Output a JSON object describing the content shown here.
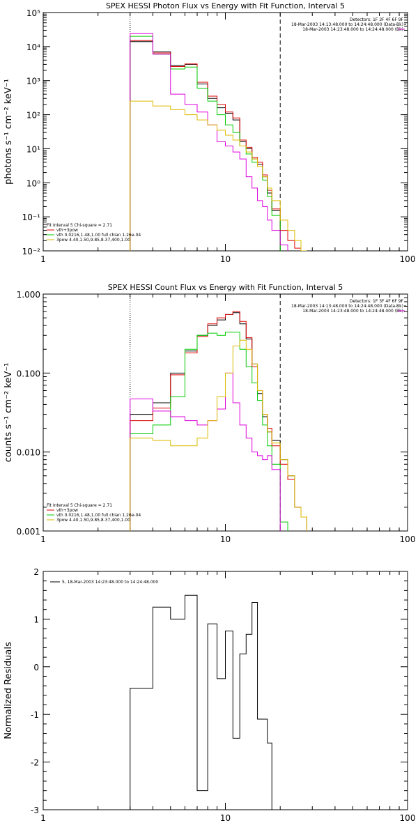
{
  "chart_data": [
    {
      "type": "line",
      "title": "SPEX HESSI Photon Flux vs Energy with Fit Function, Interval 5",
      "ylabel": "photons s⁻¹ cm⁻² keV⁻¹",
      "xlabel": "",
      "x_scale": "log",
      "y_scale": "log",
      "xlim": [
        1,
        100
      ],
      "ylim": [
        0.01,
        100000
      ],
      "x_ticks": [
        "1",
        "10",
        "100"
      ],
      "y_ticks": [
        "10⁻²",
        "10⁻¹",
        "10⁰",
        "10¹",
        "10²",
        "10³",
        "10⁴",
        "10⁵"
      ],
      "vlines": [
        3,
        20
      ],
      "legend_top": [
        "Detectors: 1F 3F 4F 6F 9F",
        "18-Mar-2003 14:13:48.000 to 14:24:48.000 (Data-Bk)",
        "18-Mar-2003 14:23:48.000 to 14:24:48.000 (Bk)"
      ],
      "legend_bottom_title": "Fit Interval 5   Chi-square = 2.71",
      "legend_bottom": [
        "vth+3pow",
        "vth 0.0216,1.48,1.00  full chian 1.26e-04",
        "3pow 4.40,1.50,9.85,8.37,400,1.00"
      ],
      "bin_edges": [
        3,
        4,
        5,
        6,
        7,
        8,
        9,
        10,
        11,
        12,
        13,
        14,
        15,
        16,
        17,
        18,
        20,
        22,
        24,
        26,
        28
      ],
      "series": [
        {
          "name": "18-Mar-2003 14:13:48.000 to 14:24:48.000 (Data-Bk)",
          "color": "#000000",
          "values": [
            14000,
            7000,
            2800,
            3000,
            800,
            300,
            160,
            110,
            70,
            16,
            10,
            5,
            3.5,
            1.5,
            0.5,
            0.15
          ]
        },
        {
          "name": "vth+3pow",
          "color": "#dd0000",
          "values": [
            15000,
            6500,
            2600,
            3100,
            900,
            350,
            200,
            120,
            80,
            18,
            11,
            5.5,
            4.0,
            1.7,
            0.6,
            0.17,
            0.04,
            0.02,
            0.012,
            0.009
          ]
        },
        {
          "name": "vth 0.0216,1.48,1.00  full chian 1.26e-04",
          "color": "#00cc00",
          "values": [
            20000,
            6000,
            2200,
            2500,
            600,
            250,
            100,
            50,
            30,
            12,
            7,
            4,
            3,
            1.2,
            0.4,
            0.11,
            0.004
          ]
        },
        {
          "name": "18-Mar-2003 14:23:48.000 to 14:24:48.000 (Bk)",
          "color": "#dd00dd",
          "values": [
            24000,
            6000,
            400,
            200,
            120,
            50,
            16,
            12,
            8,
            5,
            1.5,
            0.7,
            0.3,
            0.2,
            0.08,
            0.04,
            0.015
          ]
        },
        {
          "name": "3pow 4.40,1.50,9.85,8.37,400,1.00",
          "color": "#ddbb00",
          "values": [
            250,
            180,
            140,
            100,
            70,
            50,
            35,
            25,
            18,
            12,
            8,
            5,
            3,
            1.5,
            0.7,
            0.3,
            0.08,
            0.04,
            0.02,
            0.01
          ]
        }
      ]
    },
    {
      "type": "line",
      "title": "SPEX HESSI Count Flux vs Energy with Fit Function, Interval 5",
      "ylabel": "counts s⁻¹ cm⁻² keV⁻¹",
      "xlabel": "",
      "x_scale": "log",
      "y_scale": "log",
      "xlim": [
        1,
        100
      ],
      "ylim": [
        0.001,
        1.0
      ],
      "x_ticks": [
        "1",
        "10",
        "100"
      ],
      "y_ticks": [
        "0.001",
        "0.010",
        "0.100",
        "1.000"
      ],
      "vlines": [
        3,
        20
      ],
      "legend_top": [
        "Detectors: 1F 3F 4F 6F 9F",
        "18-Mar-2003 14:13:48.000 to 14:24:48.000 (Data-Bk)",
        "18-Mar-2003 14:23:48.000 to 14:24:48.000 (Bk)"
      ],
      "legend_bottom_title": "Fit Interval 5   Chi-square = 2.71",
      "legend_bottom": [
        "vth+3pow",
        "vth 0.0216,1.48,1.00  full chian 1.26e-04",
        "3pow 4.40,1.50,9.85,8.37,400,1.00"
      ],
      "bin_edges": [
        3,
        4,
        5,
        6,
        7,
        8,
        9,
        10,
        11,
        12,
        13,
        14,
        15,
        16,
        17,
        18,
        20,
        22,
        24,
        26,
        28
      ],
      "series": [
        {
          "name": "18-Mar-2003 14:13:48.000 to 14:24:48.000 (Data-Bk)",
          "color": "#000000",
          "values": [
            0.03,
            0.042,
            0.1,
            0.19,
            0.3,
            0.4,
            0.47,
            0.55,
            0.58,
            0.42,
            0.27,
            0.13,
            0.055,
            0.028,
            0.018,
            0.014,
            0.008,
            0.005,
            0.002,
            0.0015
          ]
        },
        {
          "name": "vth+3pow",
          "color": "#dd0000",
          "values": [
            0.025,
            0.036,
            0.095,
            0.18,
            0.29,
            0.42,
            0.5,
            0.55,
            0.6,
            0.45,
            0.28,
            0.12,
            0.06,
            0.03,
            0.02,
            0.012,
            0.007,
            0.0045,
            0.002,
            0.0015
          ]
        },
        {
          "name": "vth 0.0216,1.48,1.00  full chian 1.26e-04",
          "color": "#00cc00",
          "values": [
            0.017,
            0.022,
            0.05,
            0.2,
            0.3,
            0.32,
            0.3,
            0.33,
            0.33,
            0.2,
            0.12,
            0.075,
            0.045,
            0.022,
            0.012,
            0.007,
            0.0013
          ]
        },
        {
          "name": "18-Mar-2003 14:23:48.000 to 14:24:48.000 (Bk)",
          "color": "#dd00dd",
          "values": [
            0.047,
            0.033,
            0.028,
            0.025,
            0.022,
            0.025,
            0.035,
            0.1,
            0.042,
            0.022,
            0.015,
            0.01,
            0.009,
            0.008,
            0.009,
            0.006
          ]
        },
        {
          "name": "3pow 4.40,1.50,9.85,8.37,400,1.00",
          "color": "#ddbb00",
          "values": [
            0.015,
            0.014,
            0.012,
            0.012,
            0.015,
            0.025,
            0.05,
            0.1,
            0.22,
            0.26,
            0.2,
            0.13,
            0.06,
            0.03,
            0.018,
            0.013,
            0.008,
            0.005,
            0.002,
            0.0015
          ]
        }
      ]
    },
    {
      "type": "line",
      "title": "",
      "ylabel": "Normalized Residuals",
      "xlabel": "",
      "x_scale": "log",
      "y_scale": "linear",
      "xlim": [
        1,
        100
      ],
      "ylim": [
        -3,
        2
      ],
      "x_ticks": [
        "1",
        "10",
        "100"
      ],
      "y_ticks": [
        "-3",
        "-2",
        "-1",
        "0",
        "1",
        "2"
      ],
      "legend": [
        "5, 18-Mar-2003 14:23:48.000 to 14:24:48.000"
      ],
      "bin_edges": [
        3,
        3.5,
        4,
        5,
        6,
        7,
        8,
        8.5,
        9,
        10,
        11,
        12,
        13,
        14,
        15,
        16,
        17,
        18,
        20
      ],
      "series": [
        {
          "name": "5, 18-Mar-2003 14:23:48.000 to 14:24:48.000",
          "color": "#000000",
          "values": [
            -0.45,
            -0.45,
            1.25,
            1.0,
            1.5,
            -2.6,
            0.9,
            0.9,
            -0.25,
            0.75,
            -1.5,
            0.27,
            0.68,
            1.35,
            -1.1,
            -1.1,
            -1.6
          ]
        }
      ]
    }
  ]
}
